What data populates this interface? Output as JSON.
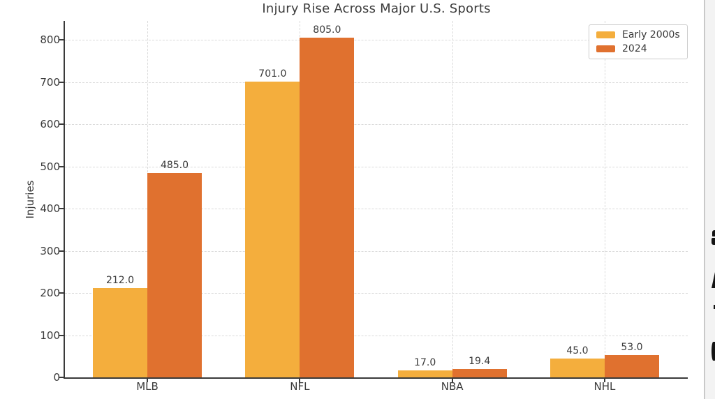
{
  "chart_data": {
    "type": "bar",
    "title": "Injury Rise Across Major U.S. Sports",
    "xlabel": "",
    "ylabel": "Injuries",
    "categories": [
      "MLB",
      "NFL",
      "NBA",
      "NHL"
    ],
    "series": [
      {
        "name": "Early 2000s",
        "color": "#F4AE3D",
        "values": [
          212.0,
          701.0,
          17.0,
          45.0
        ]
      },
      {
        "name": "2024",
        "color": "#E0712F",
        "values": [
          485.0,
          805.0,
          19.4,
          53.0
        ]
      }
    ],
    "value_label_format": "one_decimal",
    "yticks": [
      0,
      100,
      200,
      300,
      400,
      500,
      600,
      700,
      800
    ],
    "ylim": [
      0,
      845
    ],
    "grid": "dashed horizontal and vertical gridlines",
    "legend_position": "upper right",
    "colors": {
      "axis": "#3a3a3a",
      "gridline": "#dadada",
      "text": "#3b3b3b",
      "legend_border": "#cccccc",
      "background": "#ffffff"
    }
  }
}
